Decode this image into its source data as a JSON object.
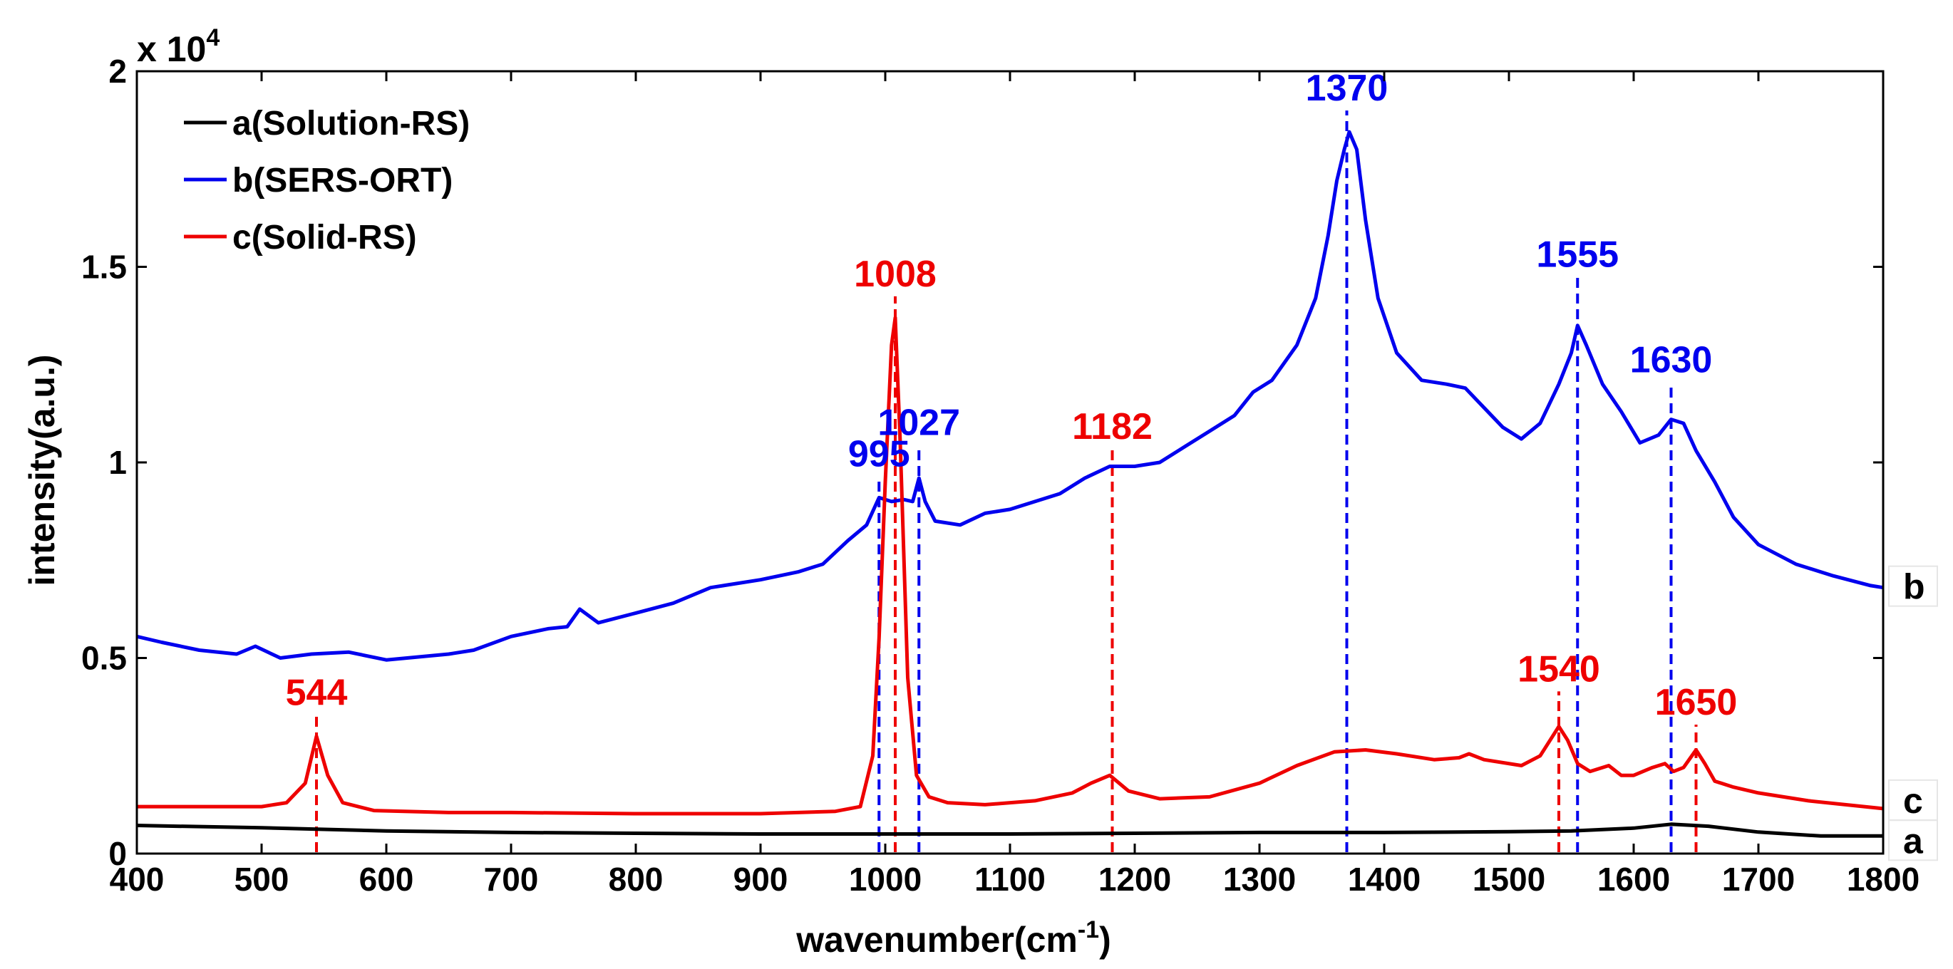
{
  "chart_data": {
    "type": "line",
    "title": "",
    "xlabel": "wavenumber(cm",
    "xlabel_superscript": "-1",
    "xlabel_suffix": ")",
    "ylabel": "intensity(a.u.)",
    "y_multiplier": "x 10",
    "y_multiplier_exponent": "4",
    "xlim": [
      400,
      1800
    ],
    "ylim": [
      0,
      2
    ],
    "xticks": [
      "400",
      "500",
      "600",
      "700",
      "800",
      "900",
      "1000",
      "1100",
      "1200",
      "1300",
      "1400",
      "1500",
      "1600",
      "1700",
      "1800"
    ],
    "yticks": [
      "0",
      "0.5",
      "1",
      "1.5",
      "2"
    ],
    "legend": {
      "placement": "top-left"
    },
    "series": [
      {
        "name": "a(Solution-RS)",
        "tag": "a",
        "color": "#000000",
        "x": [
          400,
          500,
          600,
          700,
          800,
          900,
          1000,
          1100,
          1200,
          1300,
          1400,
          1500,
          1550,
          1600,
          1630,
          1660,
          1700,
          1750,
          1800
        ],
        "values": [
          0.072,
          0.066,
          0.058,
          0.054,
          0.052,
          0.05,
          0.05,
          0.05,
          0.052,
          0.054,
          0.054,
          0.056,
          0.058,
          0.065,
          0.075,
          0.07,
          0.055,
          0.045,
          0.045
        ]
      },
      {
        "name": "b(SERS-ORT)",
        "tag": "b",
        "color": "#0000ee",
        "x": [
          400,
          420,
          450,
          480,
          495,
          505,
          515,
          540,
          570,
          600,
          650,
          670,
          700,
          730,
          745,
          755,
          770,
          800,
          830,
          860,
          900,
          930,
          950,
          970,
          985,
          995,
          1005,
          1015,
          1022,
          1027,
          1032,
          1040,
          1060,
          1080,
          1100,
          1120,
          1140,
          1160,
          1180,
          1200,
          1220,
          1240,
          1260,
          1280,
          1295,
          1310,
          1330,
          1345,
          1355,
          1362,
          1368,
          1372,
          1378,
          1385,
          1395,
          1410,
          1430,
          1450,
          1465,
          1480,
          1495,
          1510,
          1525,
          1540,
          1550,
          1555,
          1562,
          1575,
          1590,
          1605,
          1620,
          1630,
          1640,
          1650,
          1665,
          1680,
          1700,
          1730,
          1760,
          1790,
          1800
        ],
        "values": [
          0.555,
          0.54,
          0.52,
          0.51,
          0.53,
          0.515,
          0.5,
          0.51,
          0.515,
          0.495,
          0.51,
          0.52,
          0.555,
          0.575,
          0.58,
          0.625,
          0.59,
          0.615,
          0.64,
          0.68,
          0.7,
          0.72,
          0.74,
          0.8,
          0.84,
          0.91,
          0.9,
          0.905,
          0.9,
          0.96,
          0.9,
          0.85,
          0.84,
          0.87,
          0.88,
          0.9,
          0.92,
          0.96,
          0.99,
          0.99,
          1.0,
          1.04,
          1.08,
          1.12,
          1.18,
          1.21,
          1.3,
          1.42,
          1.58,
          1.72,
          1.8,
          1.845,
          1.8,
          1.62,
          1.42,
          1.28,
          1.21,
          1.2,
          1.19,
          1.14,
          1.09,
          1.06,
          1.1,
          1.2,
          1.28,
          1.35,
          1.3,
          1.2,
          1.13,
          1.05,
          1.07,
          1.11,
          1.1,
          1.03,
          0.95,
          0.86,
          0.79,
          0.74,
          0.71,
          0.685,
          0.68
        ]
      },
      {
        "name": "c(Solid-RS)",
        "tag": "c",
        "color": "#ee0000",
        "x": [
          400,
          450,
          500,
          520,
          535,
          544,
          553,
          565,
          590,
          650,
          700,
          800,
          900,
          960,
          980,
          990,
          995,
          1000,
          1005,
          1008,
          1012,
          1018,
          1025,
          1035,
          1050,
          1080,
          1120,
          1150,
          1165,
          1180,
          1195,
          1220,
          1260,
          1300,
          1330,
          1360,
          1385,
          1410,
          1440,
          1460,
          1468,
          1480,
          1510,
          1525,
          1535,
          1540,
          1547,
          1555,
          1565,
          1575,
          1580,
          1590,
          1600,
          1615,
          1625,
          1632,
          1640,
          1650,
          1657,
          1665,
          1680,
          1700,
          1740,
          1800
        ],
        "values": [
          0.12,
          0.12,
          0.12,
          0.13,
          0.18,
          0.3,
          0.2,
          0.13,
          0.11,
          0.105,
          0.105,
          0.102,
          0.102,
          0.108,
          0.12,
          0.25,
          0.55,
          0.95,
          1.3,
          1.37,
          1.05,
          0.45,
          0.2,
          0.145,
          0.13,
          0.125,
          0.135,
          0.155,
          0.18,
          0.2,
          0.16,
          0.14,
          0.145,
          0.18,
          0.225,
          0.26,
          0.265,
          0.255,
          0.24,
          0.245,
          0.255,
          0.24,
          0.225,
          0.25,
          0.3,
          0.325,
          0.29,
          0.23,
          0.21,
          0.22,
          0.225,
          0.2,
          0.2,
          0.22,
          0.23,
          0.21,
          0.22,
          0.265,
          0.23,
          0.185,
          0.17,
          0.155,
          0.135,
          0.115
        ]
      }
    ],
    "annotations": [
      {
        "label": "544",
        "x": 544,
        "y_top": 0.3,
        "color": "#ee0000"
      },
      {
        "label": "1008",
        "x": 1008,
        "y_top": 1.37,
        "color": "#ee0000"
      },
      {
        "label": "1182",
        "x": 1182,
        "y_top": 0.98,
        "color": "#ee0000"
      },
      {
        "label": "1540",
        "x": 1540,
        "y_top": 0.36,
        "color": "#ee0000"
      },
      {
        "label": "1650",
        "x": 1650,
        "y_top": 0.275,
        "color": "#ee0000"
      },
      {
        "label": "995",
        "x": 995,
        "y_top": 0.91,
        "color": "#0000ee"
      },
      {
        "label": "1027",
        "x": 1027,
        "y_top": 0.99,
        "color": "#0000ee"
      },
      {
        "label": "1370",
        "x": 1370,
        "y_top": 1.845,
        "color": "#0000ee"
      },
      {
        "label": "1555",
        "x": 1555,
        "y_top": 1.42,
        "color": "#0000ee"
      },
      {
        "label": "1630",
        "x": 1630,
        "y_top": 1.15,
        "color": "#0000ee"
      }
    ]
  }
}
